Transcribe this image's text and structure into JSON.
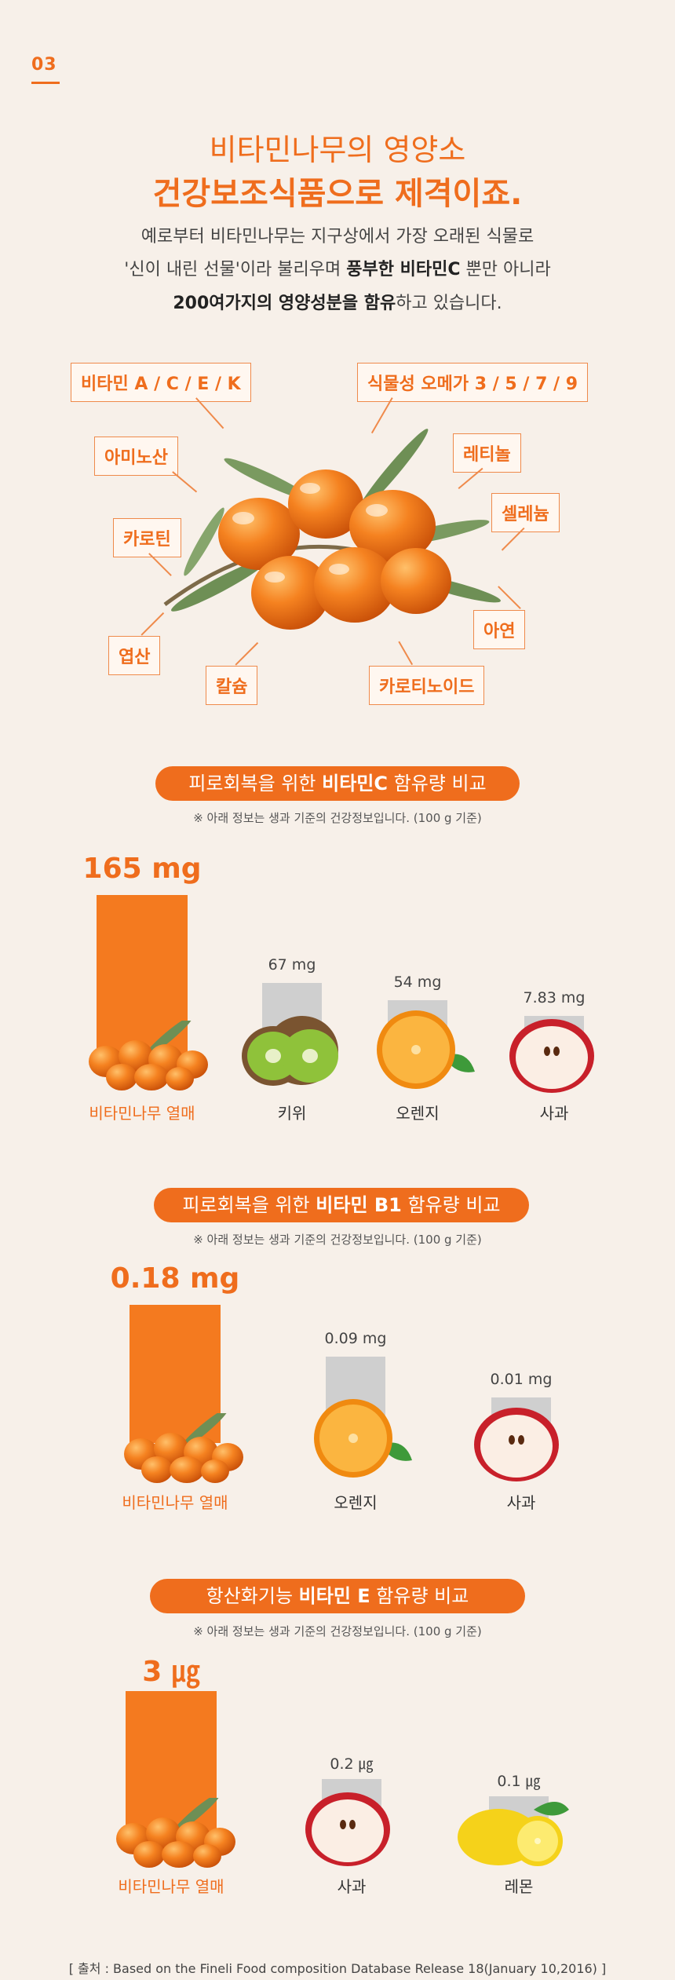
{
  "section": {
    "number": "03"
  },
  "header": {
    "line1": "비타민나무의 영양소",
    "line2": "건강보조식품으로 제격이죠.",
    "lead1": "예로부터 비타민나무는 지구상에서 가장 오래된 식물로",
    "lead2_pre": "'신이 내린 선물'이라 불리우며 ",
    "lead2_bold": "풍부한 비타민C",
    "lead2_post": " 뿐만 아니라",
    "lead3_bold": "200여가지의 영양성분을 함유",
    "lead3_post": "하고 있습니다."
  },
  "nutrients": [
    "비타민 A / C / E / K",
    "식물성 오메가 3 / 5 / 7 / 9",
    "아미노산",
    "레티놀",
    "셀레늄",
    "카로틴",
    "아연",
    "엽산",
    "칼슘",
    "카로티노이드"
  ],
  "colors": {
    "accent": "#ef6d1d",
    "bar_main": "#f47a1f",
    "bar_other": "#cfcfcf",
    "background": "#f7f0e9"
  },
  "icons": [
    "sea-buckthorn-berries-icon",
    "kiwi-icon",
    "orange-icon",
    "apple-icon",
    "lemon-icon"
  ],
  "chart_data": [
    {
      "type": "bar",
      "title_pre": "피로회복을 위한 ",
      "title_bold": "비타민C",
      "title_post": " 함유량 비교",
      "note": "※ 아래 정보는 생과 기준의 건강정보입니다. (100 g 기준)",
      "categories": [
        "비타민나무 열매",
        "키위",
        "오렌지",
        "사과"
      ],
      "values": [
        165,
        67,
        54,
        7.83
      ],
      "value_labels": [
        "165 mg",
        "67 mg",
        "54 mg",
        "7.83 mg"
      ],
      "unit": "mg"
    },
    {
      "type": "bar",
      "title_pre": "피로회복을 위한 ",
      "title_bold": "비타민 B1",
      "title_post": " 함유량 비교",
      "note": "※ 아래 정보는 생과 기준의 건강정보입니다. (100 g 기준)",
      "categories": [
        "비타민나무 열매",
        "오렌지",
        "사과"
      ],
      "values": [
        0.18,
        0.09,
        0.01
      ],
      "value_labels": [
        "0.18 mg",
        "0.09 mg",
        "0.01 mg"
      ],
      "unit": "mg"
    },
    {
      "type": "bar",
      "title_pre": "항산화기능 ",
      "title_bold": "비타민 E",
      "title_post": " 함유량 비교",
      "note": "※ 아래 정보는 생과 기준의 건강정보입니다. (100 g 기준)",
      "categories": [
        "비타민나무 열매",
        "사과",
        "레몬"
      ],
      "values": [
        3,
        0.2,
        0.1
      ],
      "value_labels": [
        "3 ㎍",
        "0.2 ㎍",
        "0.1 ㎍"
      ],
      "unit": "㎍"
    }
  ],
  "footer": {
    "source": "[ 출처 : Based on the Fineli Food composition Database Release 18(January 10,2016) ]"
  }
}
